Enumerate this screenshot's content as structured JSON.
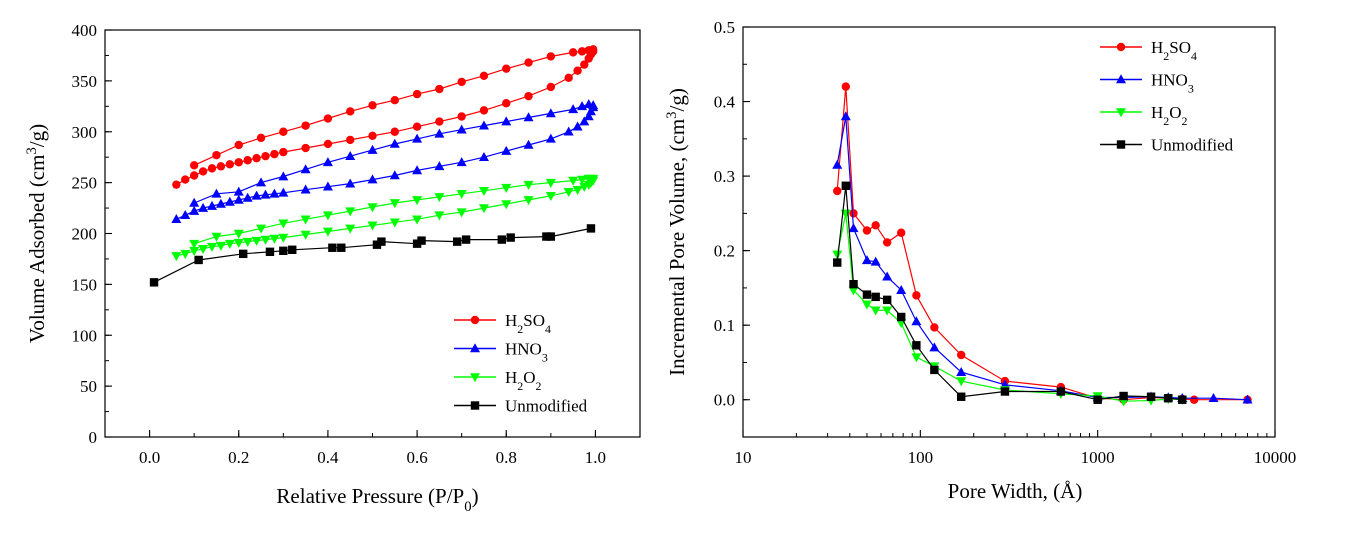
{
  "chart_data": [
    {
      "type": "line",
      "xlabel": "Relative Pressure (P/P",
      "xlabel_sub": "0",
      "xlabel_end": ")",
      "ylabel": "Volume Adsorbed (cm",
      "ylabel_sup": "3",
      "ylabel_end": "/g)",
      "xlim": [
        -0.1,
        1.1
      ],
      "ylim": [
        0,
        400
      ],
      "x_ticks": [
        "0.0",
        "0.2",
        "0.4",
        "0.6",
        "0.8",
        "1.0"
      ],
      "y_ticks": [
        "0",
        "50",
        "100",
        "150",
        "200",
        "250",
        "300",
        "350",
        "400"
      ],
      "legend_position": "bottom-right",
      "series": [
        {
          "name": "H2SO4",
          "legend_parts": [
            [
              "H",
              ""
            ],
            [
              "2",
              "sub"
            ],
            [
              "SO",
              ""
            ],
            [
              "4",
              "sub"
            ]
          ],
          "color": "#ff0000",
          "marker": "circle",
          "x": [
            0.06,
            0.08,
            0.1,
            0.12,
            0.14,
            0.16,
            0.18,
            0.2,
            0.22,
            0.24,
            0.26,
            0.28,
            0.3,
            0.35,
            0.4,
            0.45,
            0.5,
            0.55,
            0.6,
            0.65,
            0.7,
            0.75,
            0.8,
            0.85,
            0.9,
            0.94,
            0.96,
            0.975,
            0.985,
            0.99,
            0.995,
            0.995,
            0.985,
            0.97,
            0.95,
            0.9,
            0.85,
            0.8,
            0.75,
            0.7,
            0.65,
            0.6,
            0.55,
            0.5,
            0.45,
            0.4,
            0.35,
            0.3,
            0.25,
            0.2,
            0.15,
            0.1
          ],
          "y": [
            248,
            253,
            257,
            261,
            264,
            266,
            268,
            270,
            272,
            274,
            276,
            278,
            280,
            284,
            288,
            292,
            296,
            300,
            305,
            310,
            315,
            321,
            328,
            335,
            344,
            353,
            360,
            366,
            372,
            376,
            379,
            381,
            380,
            379,
            378,
            374,
            368,
            362,
            355,
            349,
            342,
            337,
            331,
            326,
            320,
            313,
            306,
            300,
            294,
            287,
            277,
            267
          ]
        },
        {
          "name": "HNO3",
          "legend_parts": [
            [
              "HNO",
              ""
            ],
            [
              "3",
              "sub"
            ]
          ],
          "color": "#0000ff",
          "marker": "triangle-up",
          "x": [
            0.06,
            0.08,
            0.1,
            0.12,
            0.14,
            0.16,
            0.18,
            0.2,
            0.22,
            0.24,
            0.26,
            0.28,
            0.3,
            0.35,
            0.4,
            0.45,
            0.5,
            0.55,
            0.6,
            0.65,
            0.7,
            0.75,
            0.8,
            0.85,
            0.9,
            0.94,
            0.96,
            0.975,
            0.985,
            0.99,
            0.995,
            0.995,
            0.985,
            0.97,
            0.95,
            0.9,
            0.85,
            0.8,
            0.75,
            0.7,
            0.65,
            0.6,
            0.55,
            0.5,
            0.45,
            0.4,
            0.35,
            0.3,
            0.25,
            0.2,
            0.15,
            0.1
          ],
          "y": [
            214,
            218,
            222,
            225,
            227,
            229,
            231,
            233,
            235,
            237,
            238,
            239,
            240,
            243,
            246,
            249,
            253,
            257,
            262,
            266,
            270,
            275,
            281,
            287,
            293,
            300,
            305,
            310,
            315,
            320,
            324,
            326,
            327,
            325,
            322,
            318,
            314,
            310,
            306,
            302,
            298,
            293,
            288,
            282,
            276,
            270,
            263,
            256,
            250,
            241,
            239,
            230
          ]
        },
        {
          "name": "H2O2",
          "legend_parts": [
            [
              "H",
              ""
            ],
            [
              "2",
              "sub"
            ],
            [
              "O",
              ""
            ],
            [
              "2",
              "sub"
            ]
          ],
          "color": "#00ff00",
          "marker": "triangle-down",
          "x": [
            0.06,
            0.08,
            0.1,
            0.12,
            0.14,
            0.16,
            0.18,
            0.2,
            0.22,
            0.24,
            0.26,
            0.28,
            0.3,
            0.35,
            0.4,
            0.45,
            0.5,
            0.55,
            0.6,
            0.65,
            0.7,
            0.75,
            0.8,
            0.85,
            0.9,
            0.94,
            0.96,
            0.975,
            0.985,
            0.99,
            0.995,
            0.995,
            0.985,
            0.97,
            0.95,
            0.9,
            0.85,
            0.8,
            0.75,
            0.7,
            0.65,
            0.6,
            0.55,
            0.5,
            0.45,
            0.4,
            0.35,
            0.3,
            0.25,
            0.2,
            0.15,
            0.1
          ],
          "y": [
            178,
            180,
            183,
            185,
            187,
            188,
            190,
            191,
            192,
            193,
            194,
            195,
            196,
            199,
            202,
            205,
            208,
            211,
            214,
            218,
            221,
            225,
            229,
            233,
            237,
            241,
            243,
            246,
            248,
            250,
            252,
            254,
            254,
            253,
            252,
            250,
            248,
            245,
            242,
            239,
            236,
            233,
            230,
            226,
            222,
            218,
            214,
            210,
            205,
            200,
            197,
            190
          ]
        },
        {
          "name": "Unmodified",
          "legend_parts": [
            [
              "Unmodified",
              ""
            ]
          ],
          "color": "#000000",
          "marker": "square",
          "x": [
            0.01,
            0.11,
            0.21,
            0.27,
            0.3,
            0.32,
            0.41,
            0.43,
            0.51,
            0.52,
            0.6,
            0.61,
            0.69,
            0.71,
            0.79,
            0.81,
            0.89,
            0.9,
            0.99
          ],
          "y": [
            152,
            174,
            180,
            182,
            183,
            184,
            186,
            186,
            189,
            192,
            190,
            193,
            192,
            194,
            194,
            196,
            197,
            197,
            205
          ]
        }
      ]
    },
    {
      "type": "line",
      "xlabel": "Pore Width, (Å)",
      "ylabel": "Incremental Pore Volume, (cm",
      "ylabel_sup": "3",
      "ylabel_end": "/g)",
      "x_scale": "log",
      "xlim": [
        10,
        10000
      ],
      "ylim": [
        -0.05,
        0.5
      ],
      "x_tick_values": [
        10,
        100,
        1000,
        10000
      ],
      "x_ticks": [
        "10",
        "100",
        "1000",
        "10000"
      ],
      "y_tick_values": [
        0.0,
        0.1,
        0.2,
        0.3,
        0.4,
        0.5
      ],
      "y_ticks": [
        "0.0",
        "0.1",
        "0.2",
        "0.3",
        "0.4",
        "0.5"
      ],
      "legend_position": "top-left",
      "series": [
        {
          "name": "H2SO4",
          "legend_parts": [
            [
              "H",
              ""
            ],
            [
              "2",
              "sub"
            ],
            [
              "SO",
              ""
            ],
            [
              "4",
              "sub"
            ]
          ],
          "color": "#ff0000",
          "marker": "circle",
          "x": [
            34,
            38,
            42,
            50,
            56,
            65,
            78,
            95,
            120,
            170,
            300,
            620,
            1000,
            1400,
            2000,
            2500,
            3000,
            3500,
            7000
          ],
          "y": [
            0.28,
            0.42,
            0.25,
            0.227,
            0.234,
            0.211,
            0.224,
            0.14,
            0.097,
            0.06,
            0.025,
            0.017,
            0.002,
            0.0,
            0.003,
            0.002,
            0.001,
            0.0,
            0.0
          ]
        },
        {
          "name": "HNO3",
          "legend_parts": [
            [
              "HNO",
              ""
            ],
            [
              "3",
              "sub"
            ]
          ],
          "color": "#0000ff",
          "marker": "triangle-up",
          "x": [
            34,
            38,
            42,
            50,
            56,
            65,
            78,
            95,
            120,
            170,
            300,
            620,
            1000,
            1400,
            2000,
            2500,
            3000,
            4500,
            7000
          ],
          "y": [
            0.315,
            0.38,
            0.23,
            0.187,
            0.185,
            0.165,
            0.147,
            0.105,
            0.07,
            0.037,
            0.02,
            0.012,
            0.003,
            0.003,
            0.004,
            0.003,
            0.002,
            0.002,
            0.0
          ]
        },
        {
          "name": "H2O2",
          "legend_parts": [
            [
              "H",
              ""
            ],
            [
              "2",
              "sub"
            ],
            [
              "O",
              ""
            ],
            [
              "2",
              "sub"
            ]
          ],
          "color": "#00ff00",
          "marker": "triangle-down",
          "x": [
            34,
            38,
            42,
            50,
            56,
            65,
            78,
            95,
            120,
            170,
            300,
            620,
            1000,
            1400,
            2000,
            2500,
            3000
          ],
          "y": [
            0.195,
            0.25,
            0.147,
            0.128,
            0.12,
            0.12,
            0.103,
            0.057,
            0.045,
            0.025,
            0.013,
            0.008,
            0.005,
            -0.002,
            -0.001,
            0.001,
            0.0
          ]
        },
        {
          "name": "Unmodified",
          "legend_parts": [
            [
              "Unmodified",
              ""
            ]
          ],
          "color": "#000000",
          "marker": "square",
          "x": [
            34,
            38,
            42,
            50,
            56,
            65,
            78,
            95,
            120,
            170,
            300,
            620,
            1000,
            1400,
            2000,
            2500,
            3000
          ],
          "y": [
            0.184,
            0.287,
            0.155,
            0.141,
            0.138,
            0.134,
            0.111,
            0.073,
            0.04,
            0.004,
            0.011,
            0.011,
            0.0,
            0.005,
            0.004,
            0.002,
            0.0
          ]
        }
      ]
    }
  ]
}
